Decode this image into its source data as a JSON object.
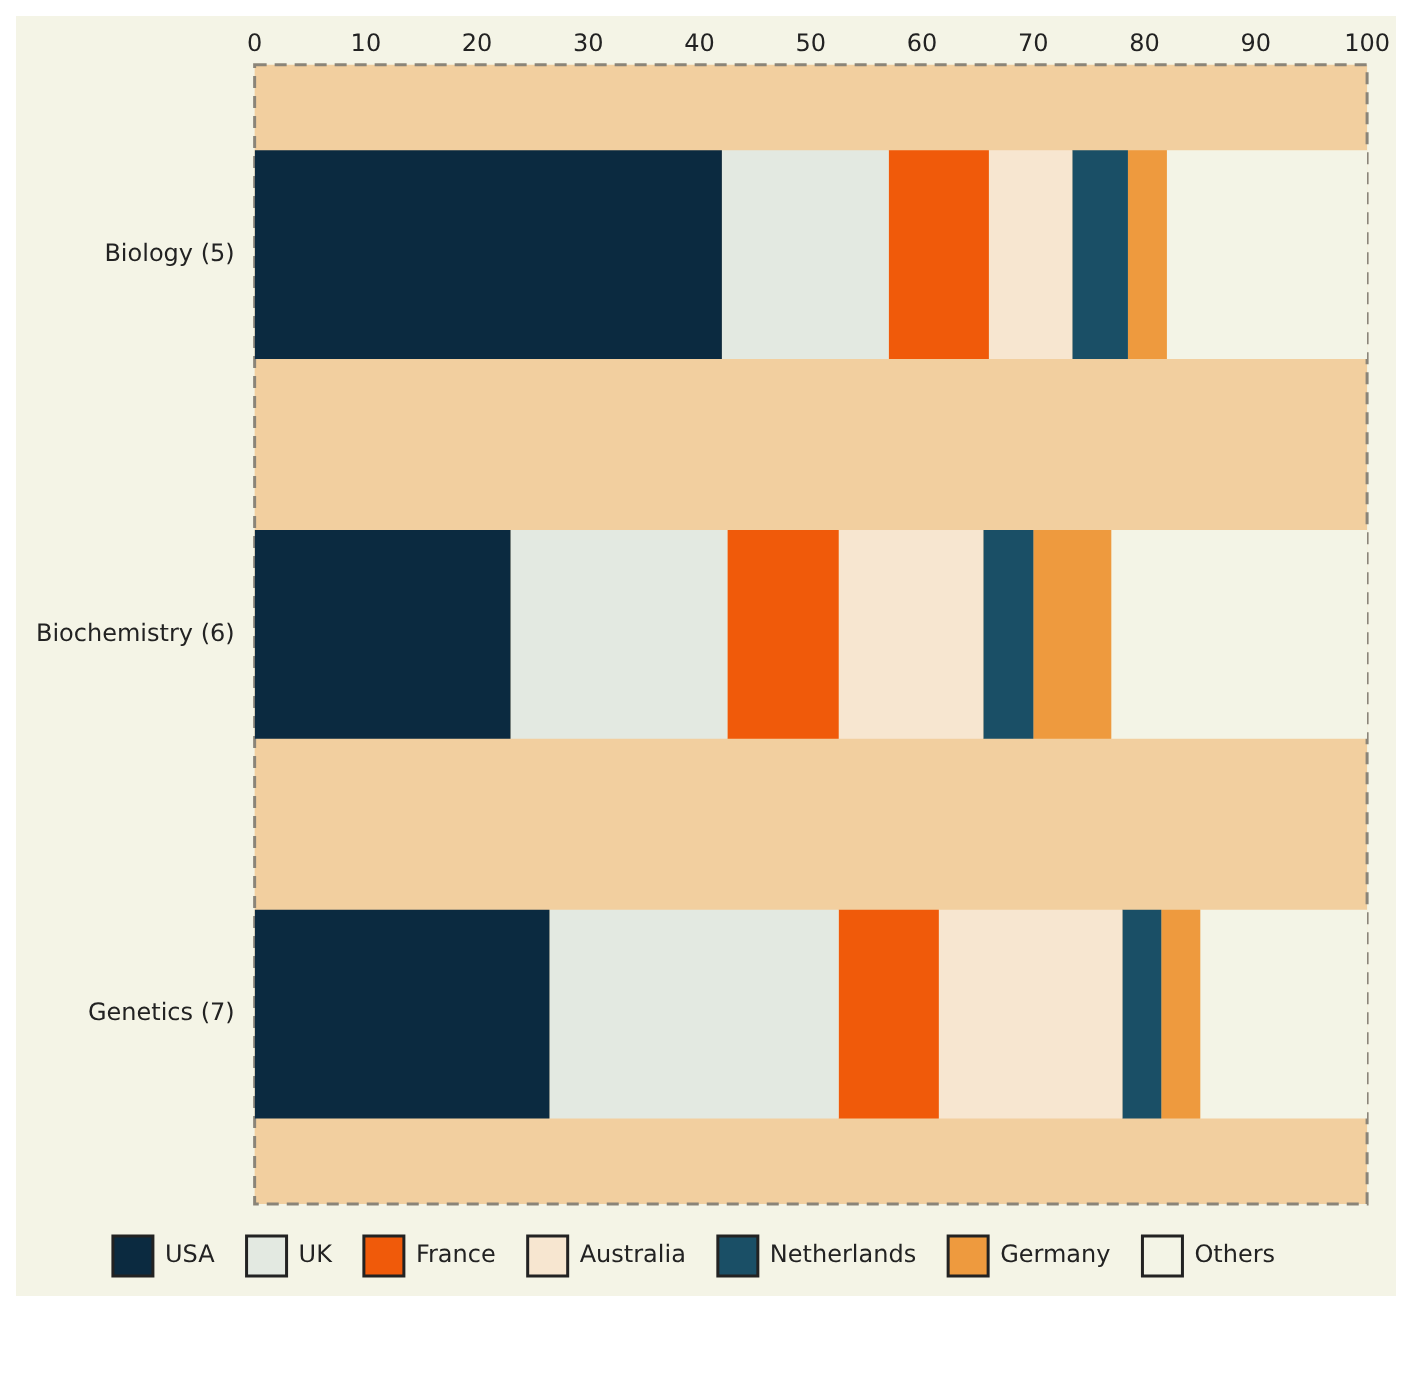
{
  "chart_data": {
    "type": "bar",
    "orientation": "horizontal",
    "stacked": true,
    "categories": [
      "Biology (5)",
      "Biochemistry (6)",
      "Genetics (7)"
    ],
    "xlim": [
      0,
      100
    ],
    "xticks": [
      0,
      10,
      20,
      30,
      40,
      50,
      60,
      70,
      80,
      90,
      100
    ],
    "grid": false,
    "legend": "bottom",
    "series": [
      {
        "name": "USA",
        "color": "#0b2a40",
        "values": [
          42,
          23,
          26.5
        ]
      },
      {
        "name": "UK",
        "color": "#e3e9e1",
        "values": [
          15,
          19.5,
          26
        ]
      },
      {
        "name": "France",
        "color": "#f05a0a",
        "values": [
          9,
          10,
          9
        ]
      },
      {
        "name": "Australia",
        "color": "#f7e6d0",
        "values": [
          7.5,
          13,
          16.5
        ]
      },
      {
        "name": "Netherlands",
        "color": "#1a4f66",
        "values": [
          5,
          4.5,
          3.5
        ]
      },
      {
        "name": "Germany",
        "color": "#ee9a3e",
        "values": [
          3.5,
          7,
          3.5
        ]
      },
      {
        "name": "Others",
        "color": "#f3f4e6",
        "values": [
          18,
          23,
          15
        ]
      }
    ]
  }
}
